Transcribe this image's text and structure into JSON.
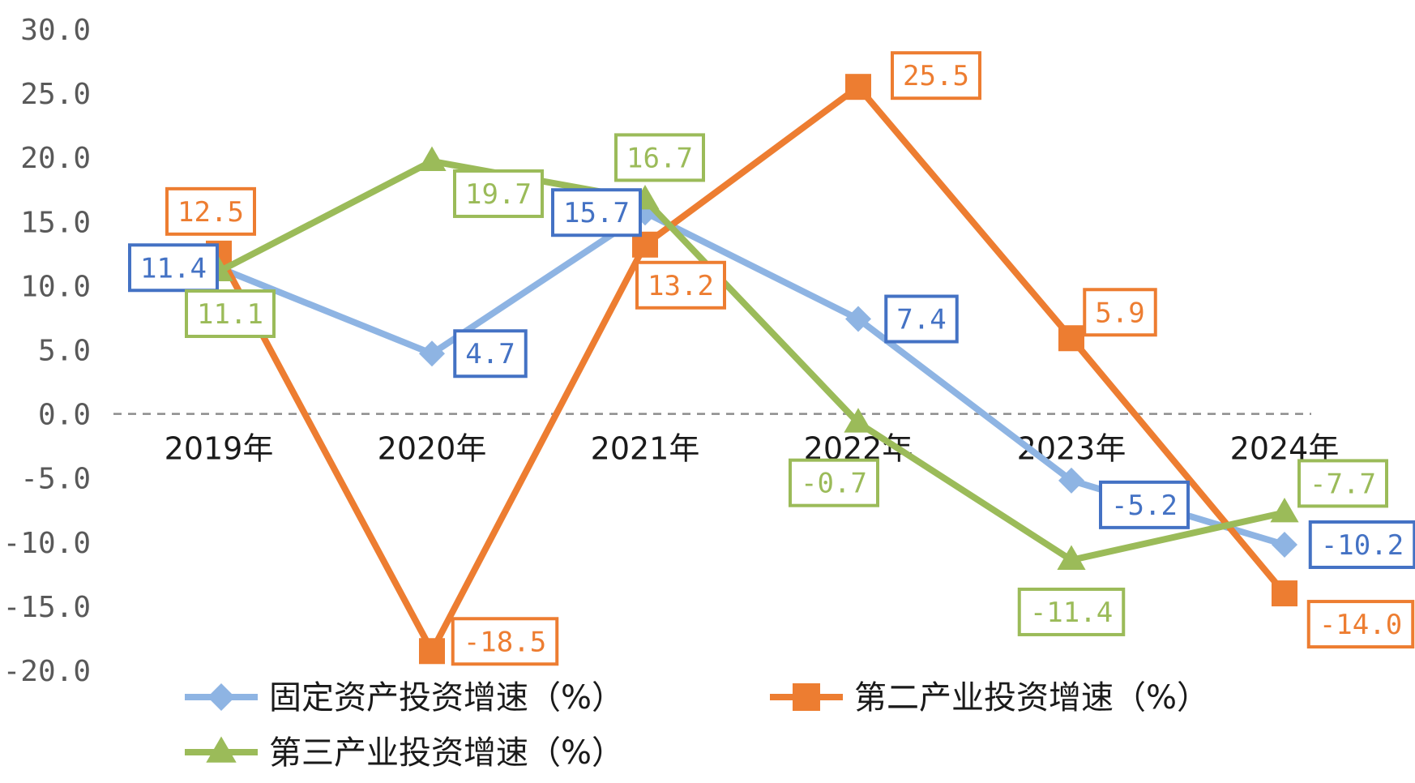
{
  "chart_data": {
    "type": "line",
    "categories": [
      "2019年",
      "2020年",
      "2021年",
      "2022年",
      "2023年",
      "2024年"
    ],
    "ylim": [
      -20,
      30
    ],
    "yticks": [
      "30.0",
      "25.0",
      "20.0",
      "15.0",
      "10.0",
      "5.0",
      "0.0",
      "-5.0",
      "-10.0",
      "-15.0",
      "-20.0"
    ],
    "zero_line": "dashed",
    "grid": false,
    "legend_position": "bottom",
    "series": [
      {
        "name": "固定资产投资增速（%）",
        "values": [
          11.4,
          4.7,
          15.7,
          7.4,
          -5.2,
          -10.2
        ],
        "labels": [
          "11.4",
          "4.7",
          "15.7",
          "7.4",
          "-5.2",
          "-10.2"
        ],
        "color": "#8EB4E3",
        "label_color": "#4472C4",
        "marker": "diamond"
      },
      {
        "name": "第二产业投资增速（%）",
        "values": [
          12.5,
          -18.5,
          13.2,
          25.5,
          5.9,
          -14.0
        ],
        "labels": [
          "12.5",
          "-18.5",
          "13.2",
          "25.5",
          "5.9",
          "-14.0"
        ],
        "color": "#ED7D31",
        "label_color": "#ED7D31",
        "marker": "square"
      },
      {
        "name": "第三产业投资增速（%）",
        "values": [
          11.1,
          19.7,
          16.7,
          -0.7,
          -11.4,
          -7.7
        ],
        "labels": [
          "11.1",
          "19.7",
          "16.7",
          "-0.7",
          "-11.4",
          "-7.7"
        ],
        "color": "#9BBB59",
        "label_color": "#9BBB59",
        "marker": "triangle"
      }
    ]
  }
}
